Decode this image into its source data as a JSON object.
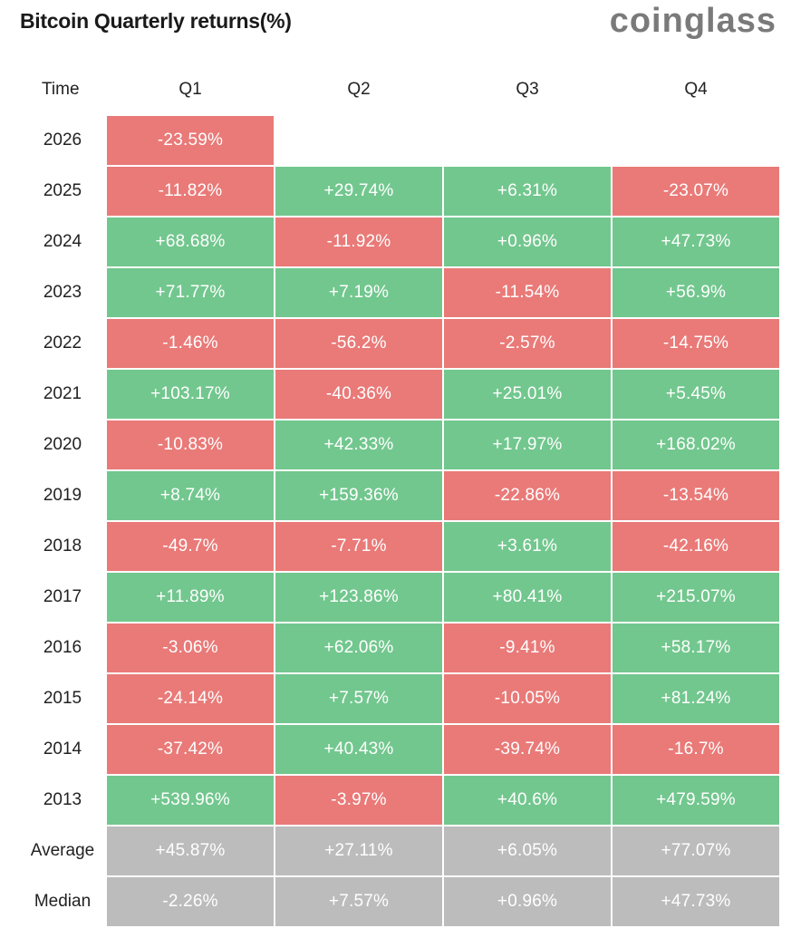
{
  "title": "Bitcoin Quarterly returns(%)",
  "brand": "coinglass",
  "colors": {
    "positive": "#72c78e",
    "negative": "#e97a78",
    "summary": "#bcbcbc"
  },
  "chart_data": {
    "type": "table",
    "title": "Bitcoin Quarterly returns(%)",
    "columns": [
      "Time",
      "Q1",
      "Q2",
      "Q3",
      "Q4"
    ],
    "rows": [
      {
        "label": "2026",
        "values": [
          "-23.59%",
          "",
          "",
          ""
        ]
      },
      {
        "label": "2025",
        "values": [
          "-11.82%",
          "+29.74%",
          "+6.31%",
          "-23.07%"
        ]
      },
      {
        "label": "2024",
        "values": [
          "+68.68%",
          "-11.92%",
          "+0.96%",
          "+47.73%"
        ]
      },
      {
        "label": "2023",
        "values": [
          "+71.77%",
          "+7.19%",
          "-11.54%",
          "+56.9%"
        ]
      },
      {
        "label": "2022",
        "values": [
          "-1.46%",
          "-56.2%",
          "-2.57%",
          "-14.75%"
        ]
      },
      {
        "label": "2021",
        "values": [
          "+103.17%",
          "-40.36%",
          "+25.01%",
          "+5.45%"
        ]
      },
      {
        "label": "2020",
        "values": [
          "-10.83%",
          "+42.33%",
          "+17.97%",
          "+168.02%"
        ]
      },
      {
        "label": "2019",
        "values": [
          "+8.74%",
          "+159.36%",
          "-22.86%",
          "-13.54%"
        ]
      },
      {
        "label": "2018",
        "values": [
          "-49.7%",
          "-7.71%",
          "+3.61%",
          "-42.16%"
        ]
      },
      {
        "label": "2017",
        "values": [
          "+11.89%",
          "+123.86%",
          "+80.41%",
          "+215.07%"
        ]
      },
      {
        "label": "2016",
        "values": [
          "-3.06%",
          "+62.06%",
          "-9.41%",
          "+58.17%"
        ]
      },
      {
        "label": "2015",
        "values": [
          "-24.14%",
          "+7.57%",
          "-10.05%",
          "+81.24%"
        ]
      },
      {
        "label": "2014",
        "values": [
          "-37.42%",
          "+40.43%",
          "-39.74%",
          "-16.7%"
        ]
      },
      {
        "label": "2013",
        "values": [
          "+539.96%",
          "-3.97%",
          "+40.6%",
          "+479.59%"
        ]
      }
    ],
    "summary_rows": [
      {
        "label": "Average",
        "values": [
          "+45.87%",
          "+27.11%",
          "+6.05%",
          "+77.07%"
        ]
      },
      {
        "label": "Median",
        "values": [
          "-2.26%",
          "+7.57%",
          "+0.96%",
          "+47.73%"
        ]
      }
    ]
  }
}
